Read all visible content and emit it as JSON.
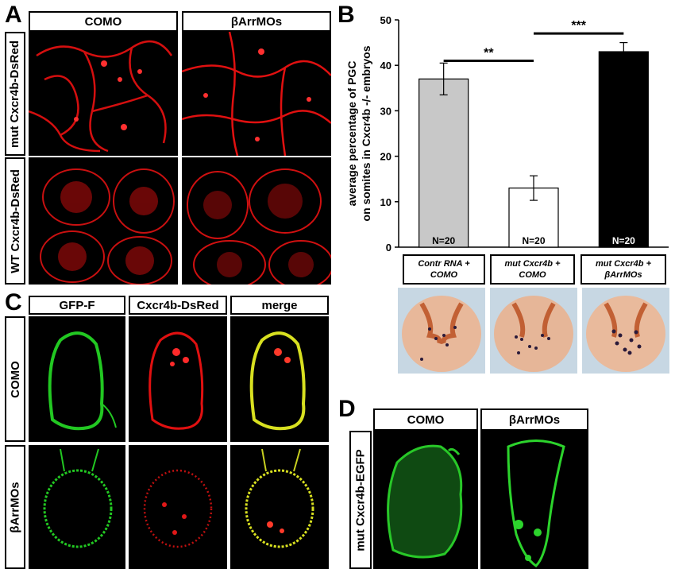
{
  "panels": {
    "A": {
      "letter": "A",
      "columns": [
        "COMO",
        "βArrMOs"
      ],
      "rows": [
        "mut Cxcr4b-DsRed",
        "WT Cxcr4b-DsRed"
      ]
    },
    "B": {
      "letter": "B"
    },
    "C": {
      "letter": "C",
      "columns": [
        "GFP-F",
        "Cxcr4b-DsRed",
        "merge"
      ],
      "rows": [
        "COMO",
        "βArrMOs"
      ]
    },
    "D": {
      "letter": "D",
      "columns": [
        "COMO",
        "βArrMOs"
      ],
      "row": "mut Cxcr4b-EGFP"
    }
  },
  "colors": {
    "red_channel": "#e01010",
    "green_channel": "#22c822",
    "merge_channel": "#d8e020",
    "bar_contr": "#c8c8c8",
    "bar_mut_como": "#ffffff",
    "bar_mut_barr": "#000000"
  },
  "chart_data": {
    "type": "bar",
    "ylabel_line1": "average percentage of PGC",
    "ylabel_line2": "on somites in Cxcr4b -/- embryos",
    "ylim": [
      0,
      50
    ],
    "yticks": [
      0,
      10,
      20,
      30,
      40,
      50
    ],
    "categories": [
      [
        "Contr RNA +",
        "COMO"
      ],
      [
        "mut Cxcr4b +",
        "COMO"
      ],
      [
        "mut Cxcr4b +",
        "βArrMOs"
      ]
    ],
    "values": [
      37,
      13,
      43
    ],
    "errors": [
      3.5,
      2.7,
      2.0
    ],
    "n_labels": [
      "N=20",
      "N=20",
      "N=20"
    ],
    "significance": [
      {
        "from": 0,
        "to": 1,
        "label": "**"
      },
      {
        "from": 1,
        "to": 2,
        "label": "***"
      }
    ]
  }
}
